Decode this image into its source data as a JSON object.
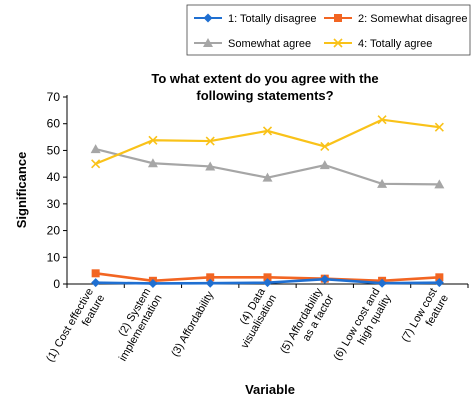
{
  "chart_data": {
    "type": "line",
    "title_lines": [
      "To what extent do you agree with the",
      "following statements?"
    ],
    "xlabel": "Variable",
    "ylabel": "Significance",
    "ylim": [
      0,
      70
    ],
    "yticks": [
      0,
      10,
      20,
      30,
      40,
      50,
      60,
      70
    ],
    "grid": false,
    "legend_position": "top",
    "categories": [
      [
        "(1) Cost effective",
        "feature"
      ],
      [
        "(2) System",
        "implementation"
      ],
      [
        "(3) Affordability"
      ],
      [
        "(4) Data",
        "visualisation"
      ],
      [
        "(5) Affordability",
        "as a factor"
      ],
      [
        "(6) Low cost and",
        "high quality"
      ],
      [
        "(7) Low cost",
        "feature"
      ]
    ],
    "series": [
      {
        "name": "1: Totally disagree",
        "color": "#1f6fd1",
        "marker": "diamond",
        "values": [
          0.5,
          0.2,
          0.3,
          0.5,
          1.8,
          0.3,
          0.5
        ]
      },
      {
        "name": "2: Somewhat disagree",
        "color": "#f26522",
        "marker": "square",
        "values": [
          4,
          1.2,
          2.5,
          2.5,
          2,
          1.2,
          2.5
        ]
      },
      {
        "name": "Somewhat agree",
        "color": "#a6a6a6",
        "marker": "triangle",
        "values": [
          50.5,
          45.2,
          44,
          39.8,
          44.5,
          37.5,
          37.3
        ]
      },
      {
        "name": "4: Totally agree",
        "color": "#f9c219",
        "marker": "x",
        "values": [
          45,
          53.8,
          53.5,
          57.3,
          51.5,
          61.5,
          58.7
        ]
      }
    ]
  }
}
